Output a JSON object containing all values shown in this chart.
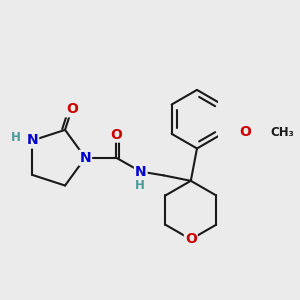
{
  "background_color": "#ebebeb",
  "bond_color": "#1a1a1a",
  "bond_width": 1.5,
  "atom_colors": {
    "N": "#0000cc",
    "O": "#cc0000",
    "H": "#4a9a9a",
    "C": "#1a1a1a"
  },
  "font_size_atoms": 10,
  "font_size_small": 8.5
}
